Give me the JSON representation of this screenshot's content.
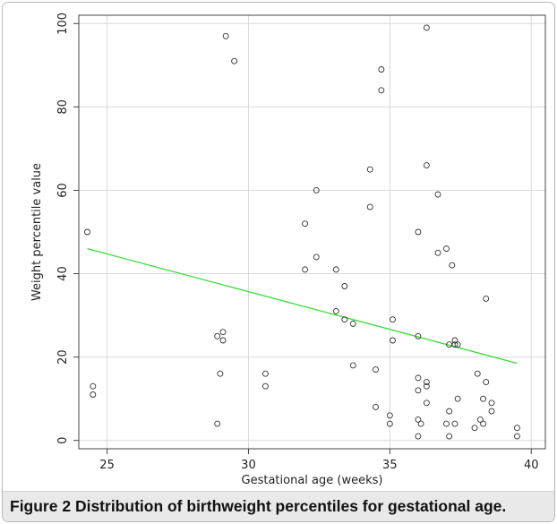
{
  "caption": {
    "label": "Figure 2",
    "text": "Distribution of birthweight percentiles for gestational age."
  },
  "colors": {
    "grid": "#d9d9d9",
    "axis": "#444444",
    "point": "#333333",
    "fit_line": "#33dd33"
  },
  "chart_data": {
    "type": "scatter",
    "title": "",
    "xlabel": "Gestational age (weeks)",
    "ylabel": "Weight percentile value",
    "xlim": [
      24,
      40.5
    ],
    "ylim": [
      -2,
      102
    ],
    "x_ticks": [
      25,
      30,
      35,
      40
    ],
    "y_ticks": [
      0,
      20,
      40,
      60,
      80,
      100
    ],
    "grid": true,
    "points": [
      [
        24.3,
        50
      ],
      [
        24.5,
        13
      ],
      [
        24.5,
        11
      ],
      [
        28.9,
        25
      ],
      [
        28.9,
        4
      ],
      [
        29.0,
        16
      ],
      [
        29.1,
        26
      ],
      [
        29.1,
        24
      ],
      [
        29.2,
        97
      ],
      [
        29.5,
        91
      ],
      [
        30.6,
        16
      ],
      [
        30.6,
        13
      ],
      [
        32.0,
        52
      ],
      [
        32.0,
        41
      ],
      [
        32.4,
        60
      ],
      [
        32.4,
        44
      ],
      [
        33.1,
        41
      ],
      [
        33.1,
        31
      ],
      [
        33.4,
        37
      ],
      [
        33.4,
        29
      ],
      [
        33.7,
        28
      ],
      [
        33.7,
        18
      ],
      [
        34.3,
        65
      ],
      [
        34.3,
        56
      ],
      [
        34.5,
        17
      ],
      [
        34.5,
        8
      ],
      [
        34.7,
        89
      ],
      [
        34.7,
        84
      ],
      [
        35.0,
        6
      ],
      [
        35.0,
        4
      ],
      [
        35.1,
        29
      ],
      [
        35.1,
        24
      ],
      [
        36.0,
        50
      ],
      [
        36.0,
        25
      ],
      [
        36.0,
        15
      ],
      [
        36.0,
        12
      ],
      [
        36.0,
        5
      ],
      [
        36.0,
        1
      ],
      [
        36.1,
        4
      ],
      [
        36.3,
        99
      ],
      [
        36.3,
        66
      ],
      [
        36.3,
        14
      ],
      [
        36.3,
        13
      ],
      [
        36.3,
        9
      ],
      [
        36.7,
        59
      ],
      [
        36.7,
        45
      ],
      [
        37.0,
        46
      ],
      [
        37.0,
        4
      ],
      [
        37.1,
        23
      ],
      [
        37.1,
        7
      ],
      [
        37.1,
        1
      ],
      [
        37.2,
        42
      ],
      [
        37.3,
        24
      ],
      [
        37.3,
        23
      ],
      [
        37.3,
        4
      ],
      [
        37.4,
        23
      ],
      [
        37.4,
        10
      ],
      [
        38.0,
        3
      ],
      [
        38.1,
        16
      ],
      [
        38.2,
        5
      ],
      [
        38.3,
        10
      ],
      [
        38.3,
        4
      ],
      [
        38.4,
        34
      ],
      [
        38.4,
        14
      ],
      [
        38.6,
        9
      ],
      [
        38.6,
        7
      ],
      [
        39.5,
        3
      ],
      [
        39.5,
        1
      ]
    ],
    "fit_line": {
      "x": [
        24.3,
        39.5
      ],
      "y": [
        46,
        18.5
      ]
    }
  }
}
